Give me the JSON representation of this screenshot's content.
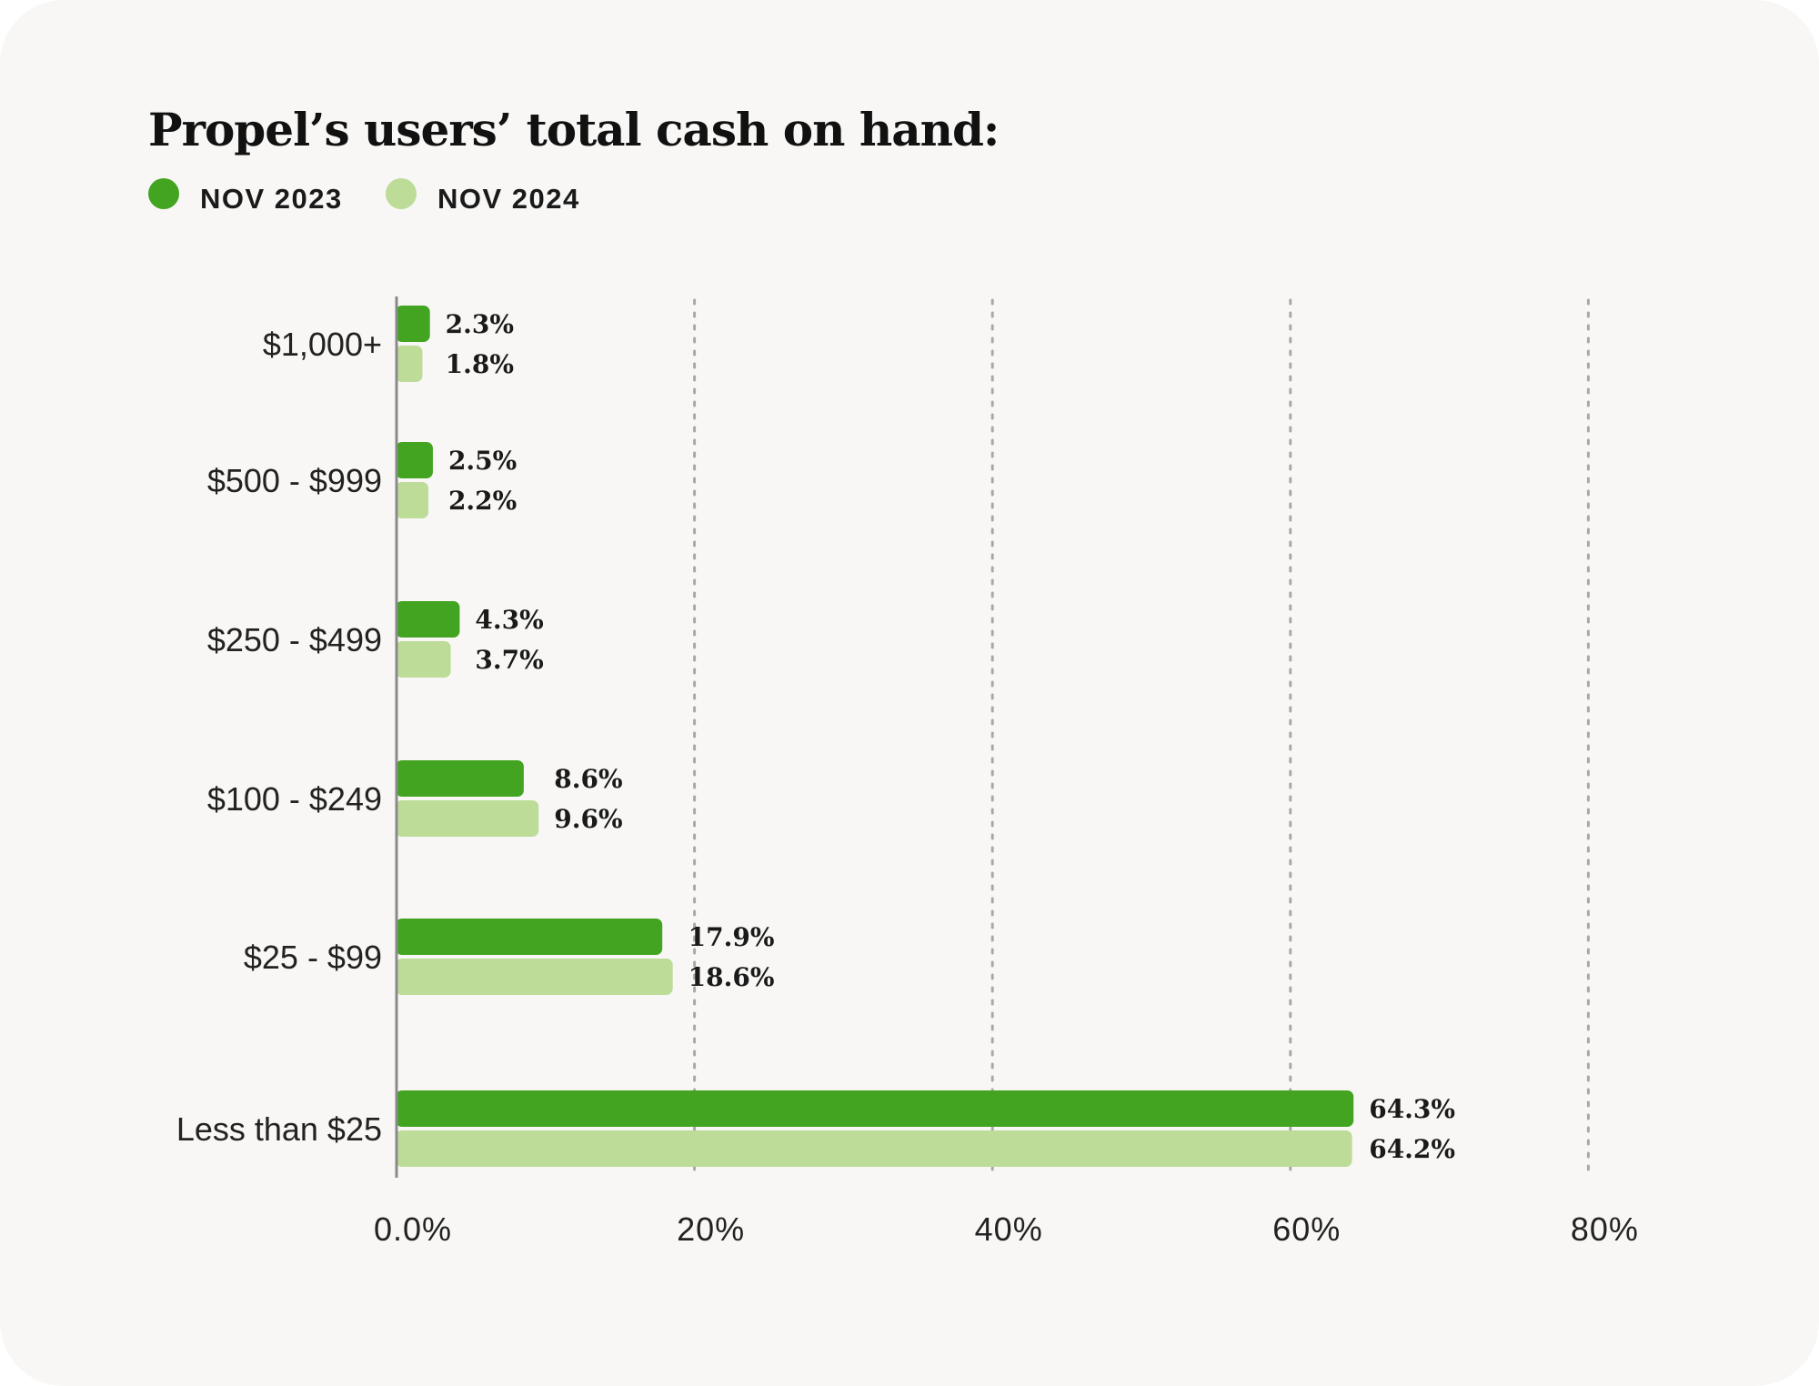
{
  "chart_data": {
    "type": "bar",
    "orientation": "horizontal",
    "title": "Propel’s users’ total cash on hand:",
    "categories": [
      "$1,000+",
      "$500 - $999",
      "$250 - $499",
      "$100 - $249",
      "$25 - $99",
      "Less than $25"
    ],
    "series": [
      {
        "name": "NOV 2023",
        "color": "#42a421",
        "values": [
          2.3,
          2.5,
          4.3,
          8.6,
          17.9,
          64.3
        ],
        "labels": [
          "2.3%",
          "2.5%",
          "4.3%",
          "8.6%",
          "17.9%",
          "64.3%"
        ]
      },
      {
        "name": "NOV 2024",
        "color": "#bcdc97",
        "values": [
          1.8,
          2.2,
          3.7,
          9.6,
          18.6,
          64.2
        ],
        "labels": [
          "1.8%",
          "2.2%",
          "3.7%",
          "9.6%",
          "18.6%",
          "64.2%"
        ]
      }
    ],
    "xlim": [
      0,
      80
    ],
    "xticks": [
      0,
      20,
      40,
      60,
      80
    ],
    "xtick_labels": [
      "0.0%",
      "20%",
      "40%",
      "60%",
      "80%"
    ],
    "grid": "vertical dotted",
    "legend": "top-left"
  }
}
